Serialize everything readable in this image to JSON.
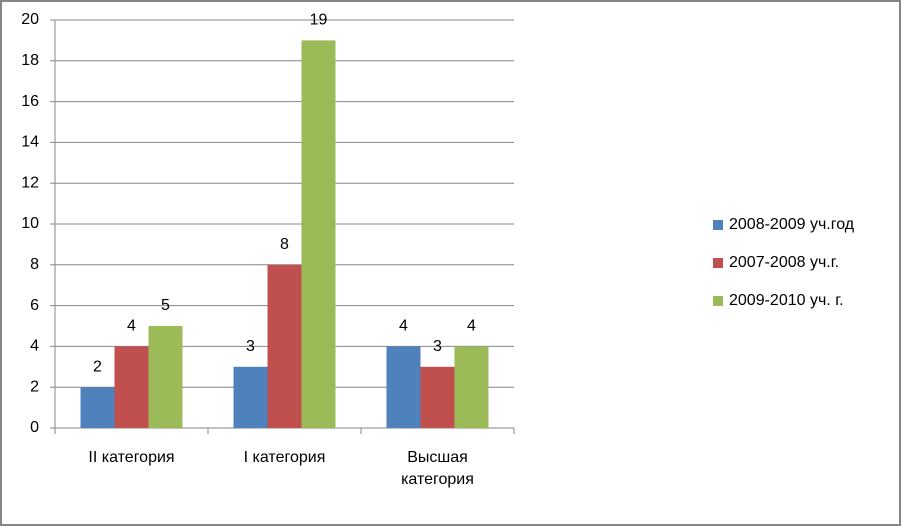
{
  "chart_data": {
    "type": "bar",
    "categories": [
      "II категория",
      "I категория",
      "Высшая категория"
    ],
    "series": [
      {
        "name": "2008-2009 уч.год",
        "color": "#4f81bd",
        "values": [
          2,
          3,
          4
        ]
      },
      {
        "name": "2007-2008 уч.г.",
        "color": "#c0504d",
        "values": [
          4,
          8,
          3
        ]
      },
      {
        "name": "2009-2010 уч. г.",
        "color": "#9bbb59",
        "values": [
          5,
          19,
          4
        ]
      }
    ],
    "ylim": [
      0,
      20
    ],
    "yticks": [
      0,
      2,
      4,
      6,
      8,
      10,
      12,
      14,
      16,
      18,
      20
    ],
    "grid": true,
    "legend": "right"
  }
}
